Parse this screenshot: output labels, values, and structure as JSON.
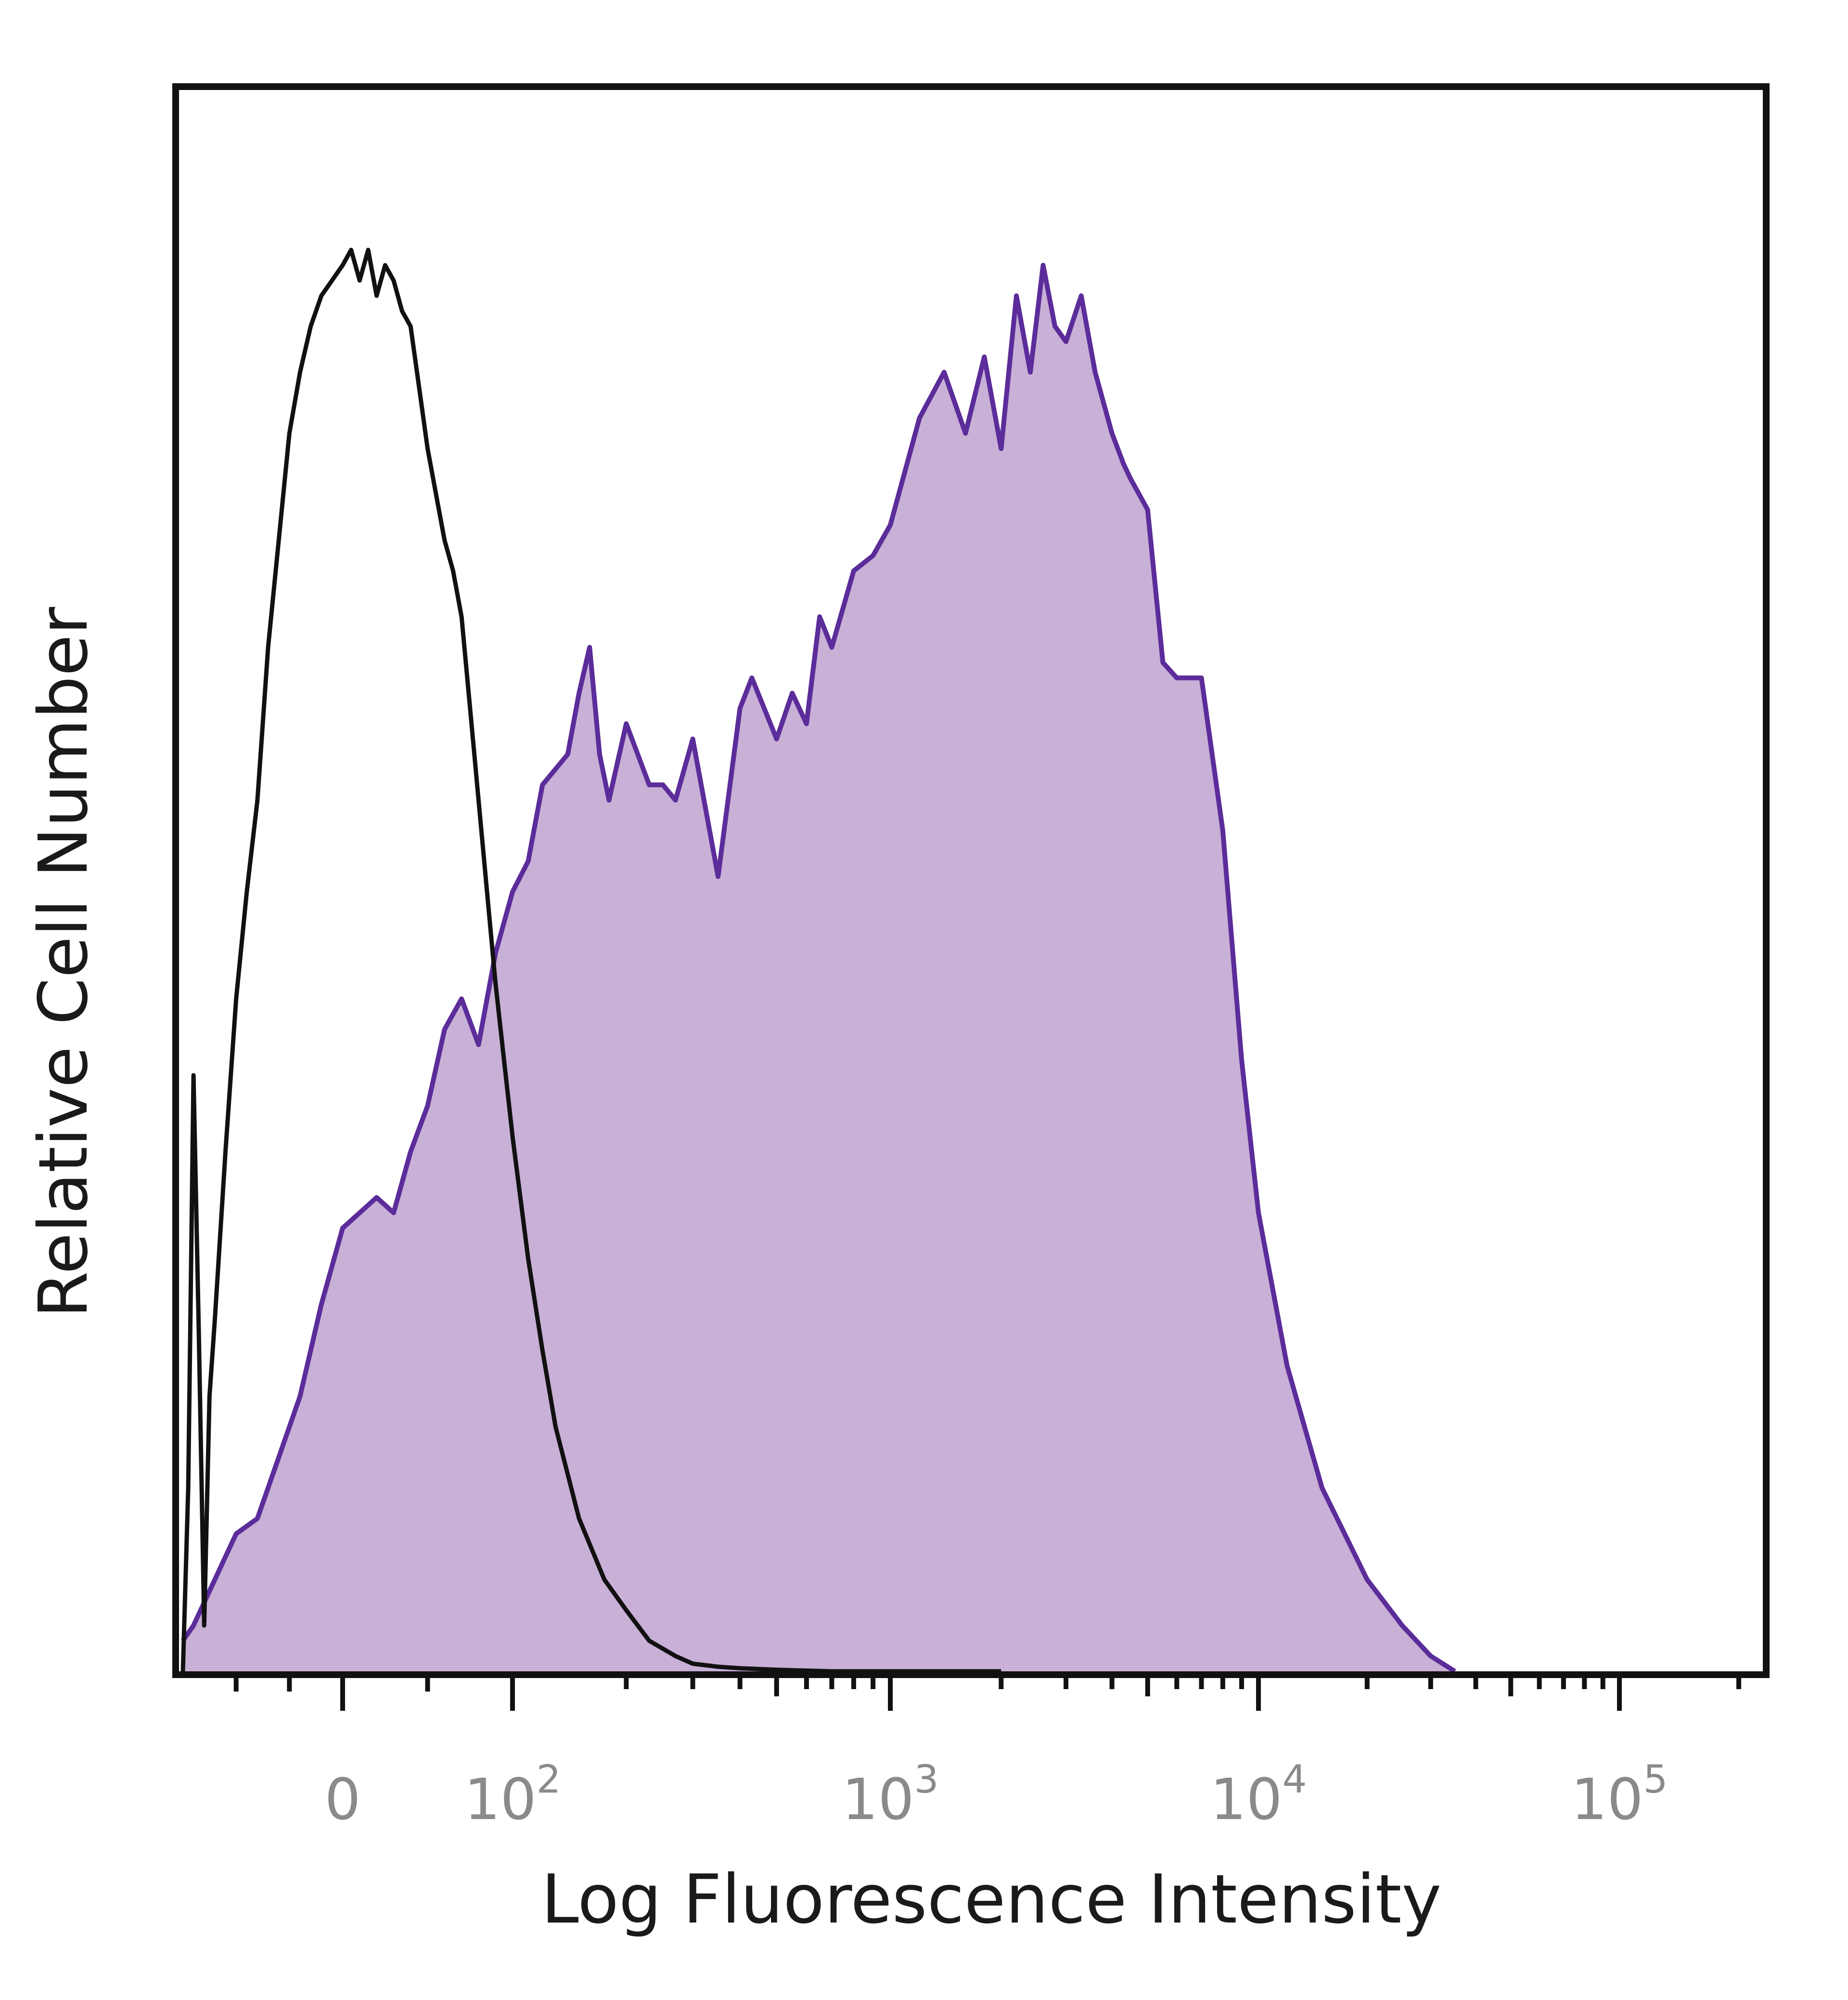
{
  "chart_data": {
    "type": "area",
    "title": "",
    "xlabel": "Log Fluorescence Intensity",
    "ylabel": "Relative Cell Number",
    "xscale": "biexponential",
    "xlim": [
      -150,
      230000
    ],
    "ylim": [
      0,
      100
    ],
    "grid": false,
    "legend": "none",
    "xticks": [
      {
        "value": 0,
        "base": "0",
        "exp": ""
      },
      {
        "value": 100,
        "base": "10",
        "exp": "2"
      },
      {
        "value": 1000,
        "base": "10",
        "exp": "3"
      },
      {
        "value": 10000,
        "base": "10",
        "exp": "4"
      },
      {
        "value": 100000,
        "base": "10",
        "exp": "5"
      }
    ],
    "series": [
      {
        "style": "outline",
        "color": "#111111",
        "x": [
          -150,
          -145,
          -140,
          -135,
          -130,
          -125,
          -120,
          -110,
          -100,
          -90,
          -80,
          -70,
          -60,
          -50,
          -40,
          -30,
          -20,
          -10,
          0,
          5,
          10,
          15,
          20,
          25,
          30,
          35,
          40,
          45,
          50,
          55,
          60,
          65,
          70,
          75,
          80,
          85,
          90,
          95,
          100,
          110,
          120,
          130,
          150,
          175,
          200,
          230,
          270,
          300,
          350,
          400,
          500,
          700,
          1000,
          2000
        ],
        "y": [
          0,
          12,
          39,
          22,
          3,
          18,
          23,
          34,
          44,
          51,
          57,
          67,
          74,
          81,
          85,
          88,
          90,
          91,
          92,
          93,
          91,
          93,
          90,
          92,
          91,
          89,
          88,
          84,
          80,
          77,
          74,
          72,
          69,
          63,
          57,
          51,
          45,
          40,
          35,
          27,
          21,
          16,
          10,
          6,
          4,
          2,
          1,
          0.5,
          0.3,
          0.2,
          0.1,
          0,
          0,
          0
        ]
      },
      {
        "style": "filled",
        "color": "#5b2c9a",
        "fill": "#c8b0d6",
        "x": [
          -150,
          -140,
          -120,
          -100,
          -80,
          -60,
          -40,
          -20,
          0,
          20,
          30,
          40,
          50,
          60,
          70,
          80,
          90,
          100,
          110,
          120,
          140,
          150,
          160,
          170,
          180,
          200,
          230,
          250,
          270,
          300,
          350,
          400,
          430,
          500,
          550,
          600,
          650,
          700,
          800,
          900,
          1000,
          1200,
          1400,
          1600,
          1800,
          2000,
          2200,
          2400,
          2600,
          2800,
          3000,
          3300,
          3600,
          4000,
          4300,
          4500,
          5000,
          5500,
          6000,
          7000,
          8000,
          9000,
          10000,
          12000,
          15000,
          20000,
          25000,
          30000,
          35000
        ],
        "y": [
          2,
          3,
          6,
          9,
          10,
          14,
          18,
          24,
          29,
          31,
          30,
          34,
          37,
          42,
          44,
          41,
          47,
          51,
          53,
          58,
          60,
          64,
          67,
          60,
          57,
          62,
          58,
          58,
          57,
          61,
          52,
          63,
          65,
          61,
          64,
          62,
          69,
          67,
          72,
          73,
          75,
          82,
          85,
          81,
          86,
          80,
          90,
          85,
          92,
          88,
          87,
          90,
          85,
          81,
          79,
          78,
          76,
          66,
          65,
          65,
          55,
          40,
          30,
          20,
          12,
          6,
          3,
          1,
          0
        ]
      }
    ]
  }
}
